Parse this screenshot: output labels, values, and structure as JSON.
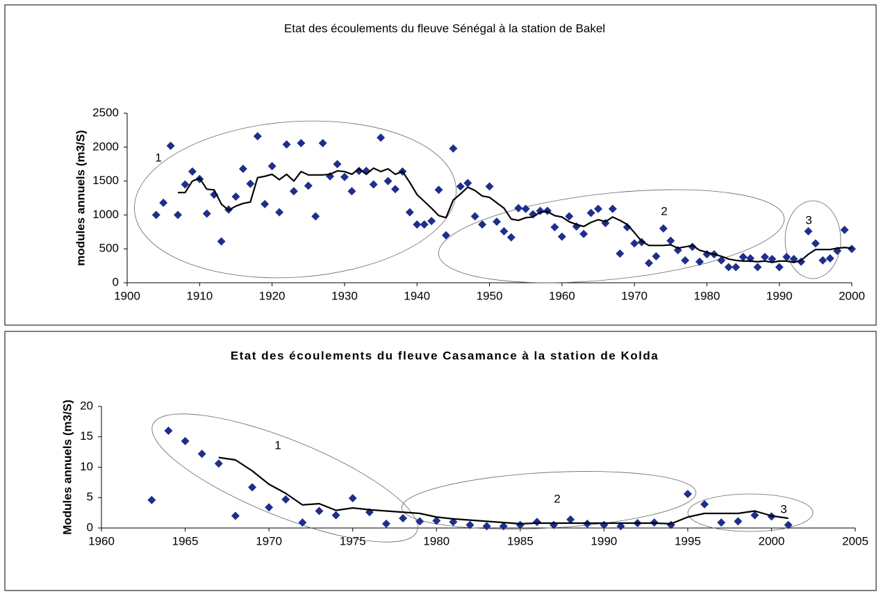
{
  "chart_data": [
    {
      "type": "scatter",
      "title": "Etat des écoulements du fleuve Sénégal à la station de Bakel",
      "y_label": "modules annuels (m3/S)",
      "x": [
        1904,
        1905,
        1906,
        1907,
        1908,
        1909,
        1910,
        1911,
        1912,
        1913,
        1914,
        1915,
        1916,
        1917,
        1918,
        1919,
        1920,
        1921,
        1922,
        1923,
        1924,
        1925,
        1926,
        1927,
        1928,
        1929,
        1930,
        1931,
        1932,
        1933,
        1934,
        1935,
        1936,
        1937,
        1938,
        1939,
        1940,
        1941,
        1942,
        1943,
        1944,
        1945,
        1946,
        1947,
        1948,
        1949,
        1950,
        1951,
        1952,
        1953,
        1954,
        1955,
        1956,
        1957,
        1958,
        1959,
        1960,
        1961,
        1962,
        1963,
        1964,
        1965,
        1966,
        1967,
        1968,
        1969,
        1970,
        1971,
        1972,
        1973,
        1974,
        1975,
        1976,
        1977,
        1978,
        1979,
        1980,
        1981,
        1982,
        1983,
        1984,
        1985,
        1986,
        1987,
        1988,
        1989,
        1990,
        1991,
        1992,
        1993,
        1994,
        1995,
        1996,
        1997,
        1998,
        1999,
        2000
      ],
      "series": [
        {
          "color": "#1f2e8c",
          "marker": "diamond",
          "values": [
            1000,
            1180,
            2020,
            1000,
            1450,
            1640,
            1530,
            1020,
            1300,
            610,
            1080,
            1270,
            1680,
            1460,
            2160,
            1160,
            1720,
            1040,
            2040,
            1350,
            2060,
            1430,
            980,
            2060,
            1570,
            1750,
            1560,
            1350,
            1650,
            1650,
            1450,
            2140,
            1500,
            1380,
            1640,
            1040,
            860,
            860,
            910,
            1370,
            700,
            1980,
            1420,
            1470,
            980,
            860,
            1420,
            900,
            760,
            670,
            1100,
            1090,
            1010,
            1060,
            1060,
            820,
            680,
            980,
            830,
            720,
            1030,
            1090,
            880,
            1090,
            430,
            820,
            580,
            600,
            290,
            390,
            800,
            620,
            480,
            330,
            530,
            310,
            420,
            420,
            330,
            230,
            230,
            380,
            360,
            230,
            380,
            350,
            230,
            380,
            350,
            310,
            760,
            580,
            330,
            360,
            470,
            780,
            500
          ]
        },
        {
          "color": "#000000",
          "marker": "line",
          "values": [
            null,
            null,
            null,
            1330,
            1330,
            1500,
            1540,
            1380,
            1370,
            1160,
            1070,
            1130,
            1170,
            1190,
            1550,
            1570,
            1600,
            1520,
            1600,
            1500,
            1640,
            1590,
            1590,
            1590,
            1600,
            1650,
            1640,
            1600,
            1680,
            1600,
            1690,
            1640,
            1680,
            1600,
            1640,
            1480,
            1300,
            1200,
            1100,
            990,
            960,
            1220,
            1310,
            1410,
            1360,
            1280,
            1260,
            1180,
            1100,
            940,
            920,
            960,
            970,
            1040,
            1050,
            990,
            970,
            900,
            860,
            830,
            890,
            930,
            900,
            970,
            920,
            860,
            740,
            610,
            550,
            550,
            550,
            560,
            510,
            530,
            550,
            480,
            450,
            420,
            390,
            350,
            330,
            320,
            320,
            310,
            320,
            300,
            320,
            320,
            300,
            330,
            420,
            490,
            490,
            490,
            510,
            520,
            510
          ]
        }
      ],
      "annotations": [
        "1",
        "2",
        "3"
      ],
      "xlim": [
        1900,
        2000
      ],
      "xticks": [
        1900,
        1910,
        1920,
        1930,
        1940,
        1950,
        1960,
        1970,
        1980,
        1990,
        2000
      ],
      "ylim": [
        0,
        2500
      ],
      "yticks": [
        0,
        500,
        1000,
        1500,
        2000,
        2500
      ]
    },
    {
      "type": "scatter",
      "title": "Etat des écoulements du fleuve Casamance à la station de Kolda",
      "y_label": "Modules annuels (m3/S)",
      "x": [
        1963,
        1964,
        1965,
        1966,
        1967,
        1968,
        1969,
        1970,
        1971,
        1972,
        1973,
        1974,
        1975,
        1976,
        1977,
        1978,
        1979,
        1980,
        1981,
        1982,
        1983,
        1984,
        1985,
        1986,
        1987,
        1988,
        1989,
        1990,
        1991,
        1992,
        1993,
        1994,
        1995,
        1996,
        1997,
        1998,
        1999,
        2000,
        2001
      ],
      "series": [
        {
          "color": "#1f2e8c",
          "marker": "diamond",
          "values": [
            4.6,
            16,
            14.3,
            12.2,
            10.6,
            2.0,
            6.7,
            3.4,
            4.7,
            0.9,
            2.8,
            2.1,
            4.9,
            2.6,
            0.7,
            1.6,
            1.1,
            1.2,
            1.0,
            0.5,
            0.3,
            0.3,
            0.5,
            1.0,
            0.5,
            1.4,
            0.7,
            0.5,
            0.3,
            0.8,
            0.9,
            0.5,
            5.6,
            3.9,
            0.9,
            1.1,
            2.1,
            1.9,
            0.5
          ]
        },
        {
          "color": "#000000",
          "marker": "line",
          "values": [
            null,
            null,
            null,
            null,
            11.6,
            11.2,
            9.4,
            7.2,
            5.7,
            3.8,
            4.0,
            2.9,
            3.3,
            3.0,
            2.8,
            2.6,
            2.4,
            1.8,
            1.5,
            1.3,
            1.1,
            0.9,
            0.7,
            0.8,
            0.8,
            0.8,
            0.8,
            0.8,
            0.8,
            0.8,
            0.8,
            0.7,
            1.8,
            2.4,
            2.4,
            2.4,
            2.8,
            2.0,
            1.6
          ]
        }
      ],
      "annotations": [
        "1",
        "2",
        "3"
      ],
      "xlim": [
        1960,
        2005
      ],
      "xticks": [
        1960,
        1965,
        1970,
        1975,
        1980,
        1985,
        1990,
        1995,
        2000,
        2005
      ],
      "ylim": [
        0,
        20
      ],
      "yticks": [
        0,
        5,
        10,
        15,
        20
      ]
    }
  ]
}
